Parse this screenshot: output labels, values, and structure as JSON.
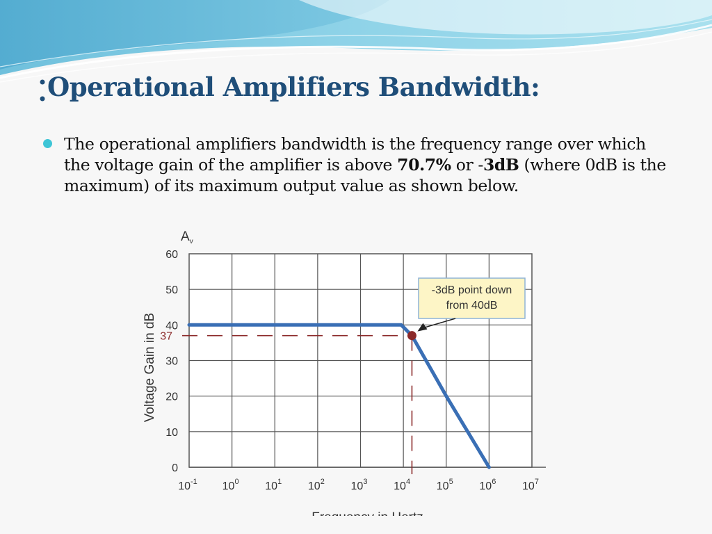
{
  "slide": {
    "title": "Operational Amplifiers Bandwidth:",
    "bullet": {
      "part1": "The operational amplifiers bandwidth is the frequency range over which the voltage gain of the amplifier is above ",
      "bold1": "70.7%",
      "part2": " or -",
      "bold2": "3dB",
      "part3": " (where 0dB is the maximum) of its maximum output value as shown below."
    }
  },
  "chart_data": {
    "type": "line",
    "x_scale": "log10",
    "xlim_exponent": [
      -1,
      7
    ],
    "ylim": [
      0,
      60
    ],
    "y_ticks": [
      "0",
      "10",
      "20",
      "30",
      "40",
      "50",
      "60"
    ],
    "x_ticks": [
      {
        "base": "10",
        "exp": "-1"
      },
      {
        "base": "10",
        "exp": "0"
      },
      {
        "base": "10",
        "exp": "1"
      },
      {
        "base": "10",
        "exp": "2"
      },
      {
        "base": "10",
        "exp": "3"
      },
      {
        "base": "10",
        "exp": "4"
      },
      {
        "base": "10",
        "exp": "5"
      },
      {
        "base": "10",
        "exp": "6"
      },
      {
        "base": "10",
        "exp": "7"
      }
    ],
    "xlabel": "Frequency in Hertz",
    "ylabel": "Voltage Gain in dB",
    "corner_label": {
      "main": "A",
      "sub": "v"
    },
    "grid": true,
    "series": [
      {
        "color": "#3a6fb5",
        "points": [
          {
            "x_exp": -1,
            "y": 40
          },
          {
            "x_exp": 3.95,
            "y": 40
          },
          {
            "x_exp": 4.2,
            "y": 37
          },
          {
            "x_exp": 5,
            "y": 20
          },
          {
            "x_exp": 6,
            "y": 0
          }
        ]
      }
    ],
    "marker": {
      "x_exp": 4.2,
      "y": 37,
      "label": "37",
      "color": "#8b2a2a"
    },
    "annotation": {
      "lines": [
        "-3dB point down",
        "from 40dB"
      ]
    }
  }
}
